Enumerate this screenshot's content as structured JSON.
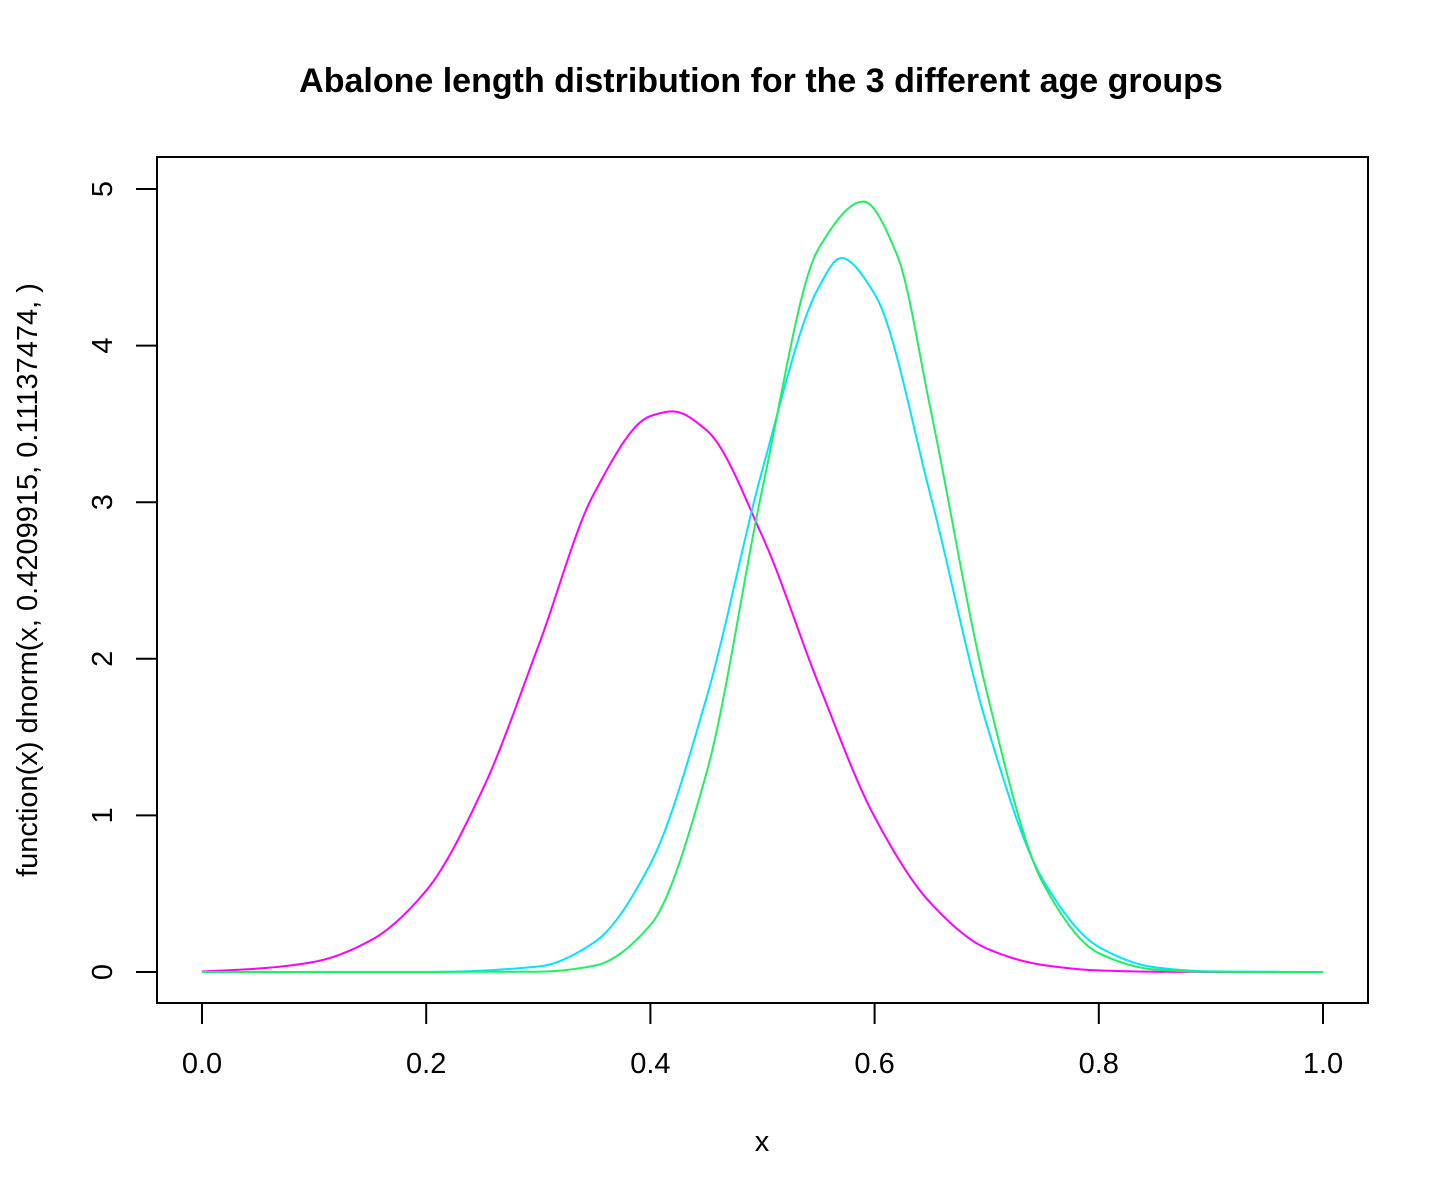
{
  "chart_data": {
    "type": "line",
    "title": "Abalone length distribution for the 3 different age groups",
    "xlabel": "x",
    "ylabel": "function(x) dnorm(x, 0.4209915, 0.11137474, )",
    "xlim": [
      0,
      1
    ],
    "ylim": [
      0,
      5
    ],
    "x_ticks": [
      "0.0",
      "0.2",
      "0.4",
      "0.6",
      "0.8",
      "1.0"
    ],
    "y_ticks": [
      "0",
      "1",
      "2",
      "3",
      "4",
      "5"
    ],
    "grid": false,
    "legend": "none",
    "series": [
      {
        "color": "#ff00ff",
        "x": [
          0.0,
          0.05,
          0.1,
          0.15,
          0.2,
          0.25,
          0.3,
          0.35,
          0.4,
          0.42,
          0.45,
          0.5,
          0.55,
          0.6,
          0.65,
          0.7,
          0.75,
          0.8,
          0.85,
          0.9,
          0.95,
          1.0
        ],
        "y": [
          0.003,
          0.022,
          0.065,
          0.2,
          0.52,
          1.16,
          2.08,
          3.06,
          3.55,
          3.58,
          3.46,
          2.78,
          1.84,
          0.99,
          0.44,
          0.15,
          0.045,
          0.01,
          0.002,
          0.0003,
          4e-05,
          4e-06
        ]
      },
      {
        "color": "#00e5ff",
        "x": [
          0.0,
          0.2,
          0.3,
          0.35,
          0.4,
          0.45,
          0.5,
          0.55,
          0.57,
          0.6,
          0.65,
          0.7,
          0.75,
          0.8,
          0.85,
          0.9,
          1.0
        ],
        "y": [
          0.0,
          0.0002,
          0.035,
          0.19,
          0.69,
          1.75,
          3.21,
          4.37,
          4.56,
          4.33,
          3.04,
          1.58,
          0.59,
          0.16,
          0.03,
          0.004,
          0.0
        ]
      },
      {
        "color": "#1ff060",
        "x": [
          0.0,
          0.3,
          0.35,
          0.4,
          0.45,
          0.5,
          0.55,
          0.59,
          0.62,
          0.65,
          0.7,
          0.75,
          0.8,
          0.85,
          0.9,
          1.0
        ],
        "y": [
          0.0,
          0.002,
          0.04,
          0.3,
          1.27,
          3.09,
          4.62,
          4.92,
          4.58,
          3.59,
          1.79,
          0.57,
          0.12,
          0.016,
          0.0014,
          0.0
        ]
      }
    ]
  }
}
